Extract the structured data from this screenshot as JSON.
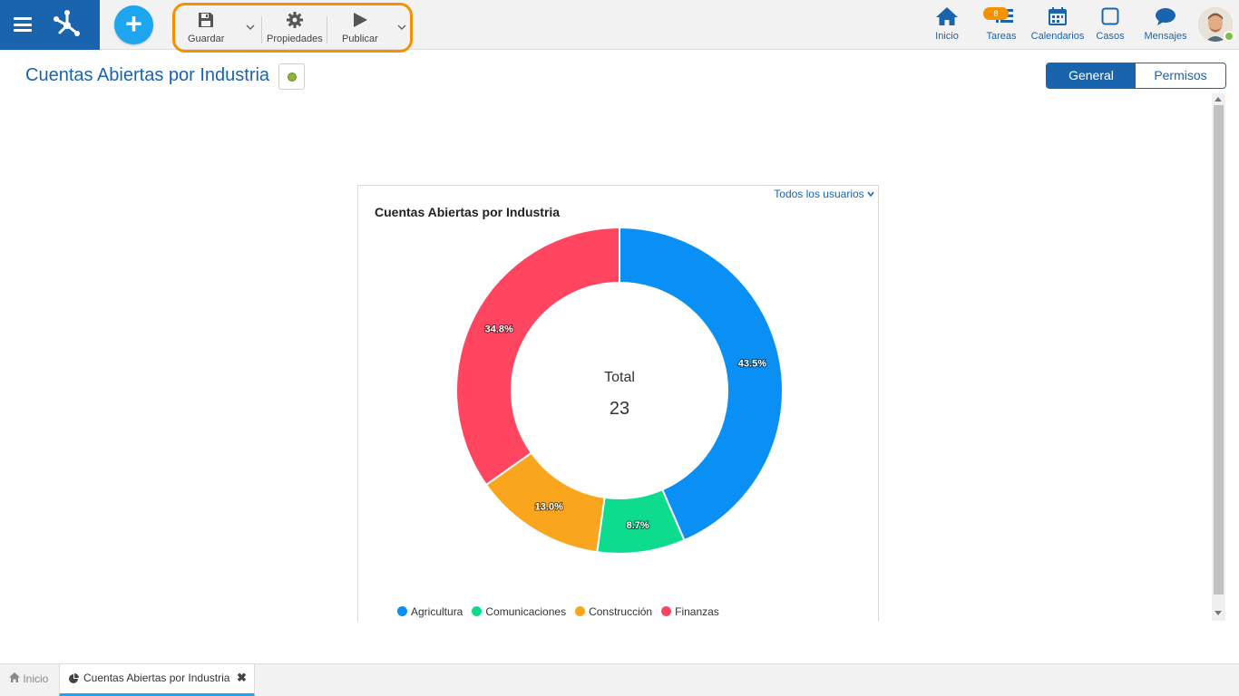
{
  "topbar": {
    "toolbar": {
      "save_label": "Guardar",
      "properties_label": "Propiedades",
      "publish_label": "Publicar"
    },
    "nav": [
      {
        "label": "Inicio",
        "icon": "home-icon"
      },
      {
        "label": "Tareas",
        "icon": "tasks-icon",
        "badge": "8"
      },
      {
        "label": "Calendarios",
        "icon": "calendar-icon"
      },
      {
        "label": "Casos",
        "icon": "cases-icon"
      },
      {
        "label": "Mensajes",
        "icon": "messages-icon"
      }
    ]
  },
  "page": {
    "title": "Cuentas Abiertas por Industria",
    "tabs": [
      {
        "label": "General",
        "active": true
      },
      {
        "label": "Permisos",
        "active": false
      }
    ]
  },
  "card": {
    "filter_label": "Todos los usuarios"
  },
  "chart_data": {
    "type": "pie",
    "title": "Cuentas Abiertas por Industria",
    "center_label": "Total",
    "center_value": "23",
    "series": [
      {
        "name": "Agricultura",
        "value": 43.5,
        "label": "43.5%",
        "color": "#0a8ff5"
      },
      {
        "name": "Comunicaciones",
        "value": 8.7,
        "label": "8.7%",
        "color": "#0ddc8e"
      },
      {
        "name": "Construcción",
        "value": 13.0,
        "label": "13.0%",
        "color": "#f9a61e"
      },
      {
        "name": "Finanzas",
        "value": 34.8,
        "label": "34.8%",
        "color": "#ff4560"
      }
    ],
    "legend_position": "bottom"
  },
  "bottombar": {
    "home_label": "Inicio",
    "active_tab_label": "Cuentas Abiertas por Industria"
  },
  "colors": {
    "brand": "#1a64ae",
    "accent": "#1ea5f0",
    "highlight": "#f39200"
  }
}
